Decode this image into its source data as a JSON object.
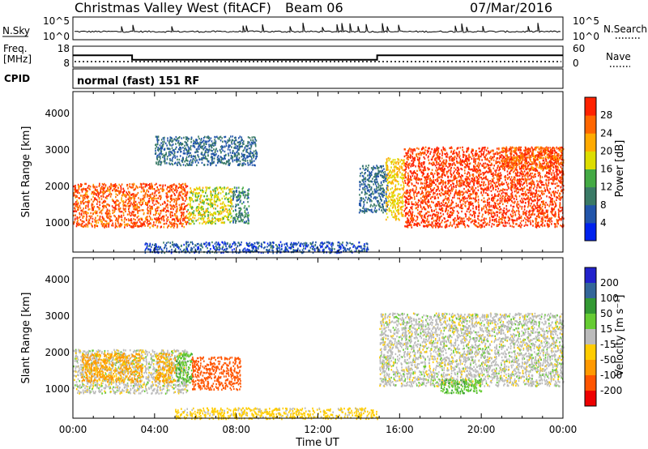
{
  "header": {
    "title": "Christmas Valley West (fitACF)",
    "beam": "Beam 06",
    "date": "07/Mar/2016"
  },
  "nsky_panel": {
    "label": "N.Sky",
    "left_ticks": [
      "10^5",
      "10^0"
    ],
    "right_ticks": [
      "10^5",
      "10^0"
    ],
    "right_label": "N.Search"
  },
  "freq_panel": {
    "label_line1": "Freq.",
    "label_line2": "[MHz]",
    "left_ticks": [
      "18",
      "8"
    ],
    "right_ticks": [
      "60",
      "0"
    ],
    "right_label": "Nave",
    "cpid_label": "CPID",
    "mode_text": "normal (fast) 151 RF"
  },
  "colors": {
    "power_scale": [
      "#0022ee",
      "#2255aa",
      "#3a7a66",
      "#44aa44",
      "#dddd00",
      "#ffaa00",
      "#ff6600",
      "#ff2200"
    ],
    "velocity_scale": [
      "#ee0000",
      "#ff5500",
      "#ff9900",
      "#ffcc00",
      "#bbbbbb",
      "#66cc33",
      "#339933",
      "#336699",
      "#2222cc"
    ]
  },
  "power_panel": {
    "ylabel": "Slant Range [km]",
    "yticks": [
      "1000",
      "2000",
      "3000",
      "4000"
    ],
    "colorbar_label": "Power [dB]",
    "colorbar_ticks": [
      "4",
      "8",
      "12",
      "16",
      "20",
      "24",
      "28"
    ]
  },
  "velocity_panel": {
    "ylabel": "Slant Range [km]",
    "yticks": [
      "1000",
      "2000",
      "3000",
      "4000"
    ],
    "colorbar_label": "Velocity [m s⁻¹]",
    "colorbar_ticks": [
      "200",
      "100",
      "50",
      "15",
      "-15",
      "-50",
      "-100",
      "-200"
    ]
  },
  "xaxis": {
    "ticks": [
      "00:00",
      "04:00",
      "08:00",
      "12:00",
      "16:00",
      "20:00",
      "00:00"
    ],
    "label": "Time UT"
  },
  "chart_data": {
    "type": "heatmap",
    "x_unit": "hours UT",
    "xlim": [
      0,
      24
    ],
    "ylim_km": [
      200,
      4600
    ],
    "freq_steps": [
      {
        "start": 0.0,
        "end": 2.9,
        "mhz": 14.5
      },
      {
        "start": 2.9,
        "end": 14.9,
        "mhz": 11.5
      },
      {
        "start": 14.9,
        "end": 24.0,
        "mhz": 14.5
      }
    ],
    "nave_level": 15,
    "power_regions": [
      {
        "t0": 0.0,
        "t1": 5.6,
        "r0": 900,
        "r1": 2100,
        "power_db": 27
      },
      {
        "t0": 5.6,
        "t1": 7.8,
        "r0": 1000,
        "r1": 2000,
        "power_db": 18
      },
      {
        "t0": 7.8,
        "t1": 8.6,
        "r0": 1000,
        "r1": 2000,
        "power_db": 10
      },
      {
        "t0": 4.0,
        "t1": 9.0,
        "r0": 2600,
        "r1": 3400,
        "power_db": 8
      },
      {
        "t0": 3.5,
        "t1": 14.5,
        "r0": 200,
        "r1": 500,
        "power_db": 6
      },
      {
        "t0": 14.0,
        "t1": 15.4,
        "r0": 1300,
        "r1": 2600,
        "power_db": 8
      },
      {
        "t0": 15.3,
        "t1": 16.2,
        "r0": 1100,
        "r1": 2800,
        "power_db": 20
      },
      {
        "t0": 16.2,
        "t1": 24.0,
        "r0": 900,
        "r1": 3100,
        "power_db": 29
      },
      {
        "t0": 21.0,
        "t1": 24.0,
        "r0": 2500,
        "r1": 3100,
        "power_db": 26
      }
    ],
    "velocity_regions": [
      {
        "t0": 0.0,
        "t1": 5.6,
        "r0": 900,
        "r1": 2100,
        "velocity_ms": 0
      },
      {
        "t0": 0.4,
        "t1": 3.4,
        "r0": 1200,
        "r1": 2000,
        "velocity_ms": -60
      },
      {
        "t0": 4.0,
        "t1": 5.0,
        "r0": 1200,
        "r1": 2000,
        "velocity_ms": -60
      },
      {
        "t0": 5.0,
        "t1": 5.8,
        "r0": 1200,
        "r1": 2000,
        "velocity_ms": 40
      },
      {
        "t0": 5.8,
        "t1": 8.2,
        "r0": 1000,
        "r1": 1900,
        "velocity_ms": -180
      },
      {
        "t0": 5.0,
        "t1": 14.9,
        "r0": 200,
        "r1": 500,
        "velocity_ms": -30
      },
      {
        "t0": 15.0,
        "t1": 24.0,
        "r0": 1100,
        "r1": 3100,
        "velocity_ms": 0
      },
      {
        "t0": 18.0,
        "t1": 20.0,
        "r0": 900,
        "r1": 1300,
        "velocity_ms": 40
      }
    ]
  }
}
